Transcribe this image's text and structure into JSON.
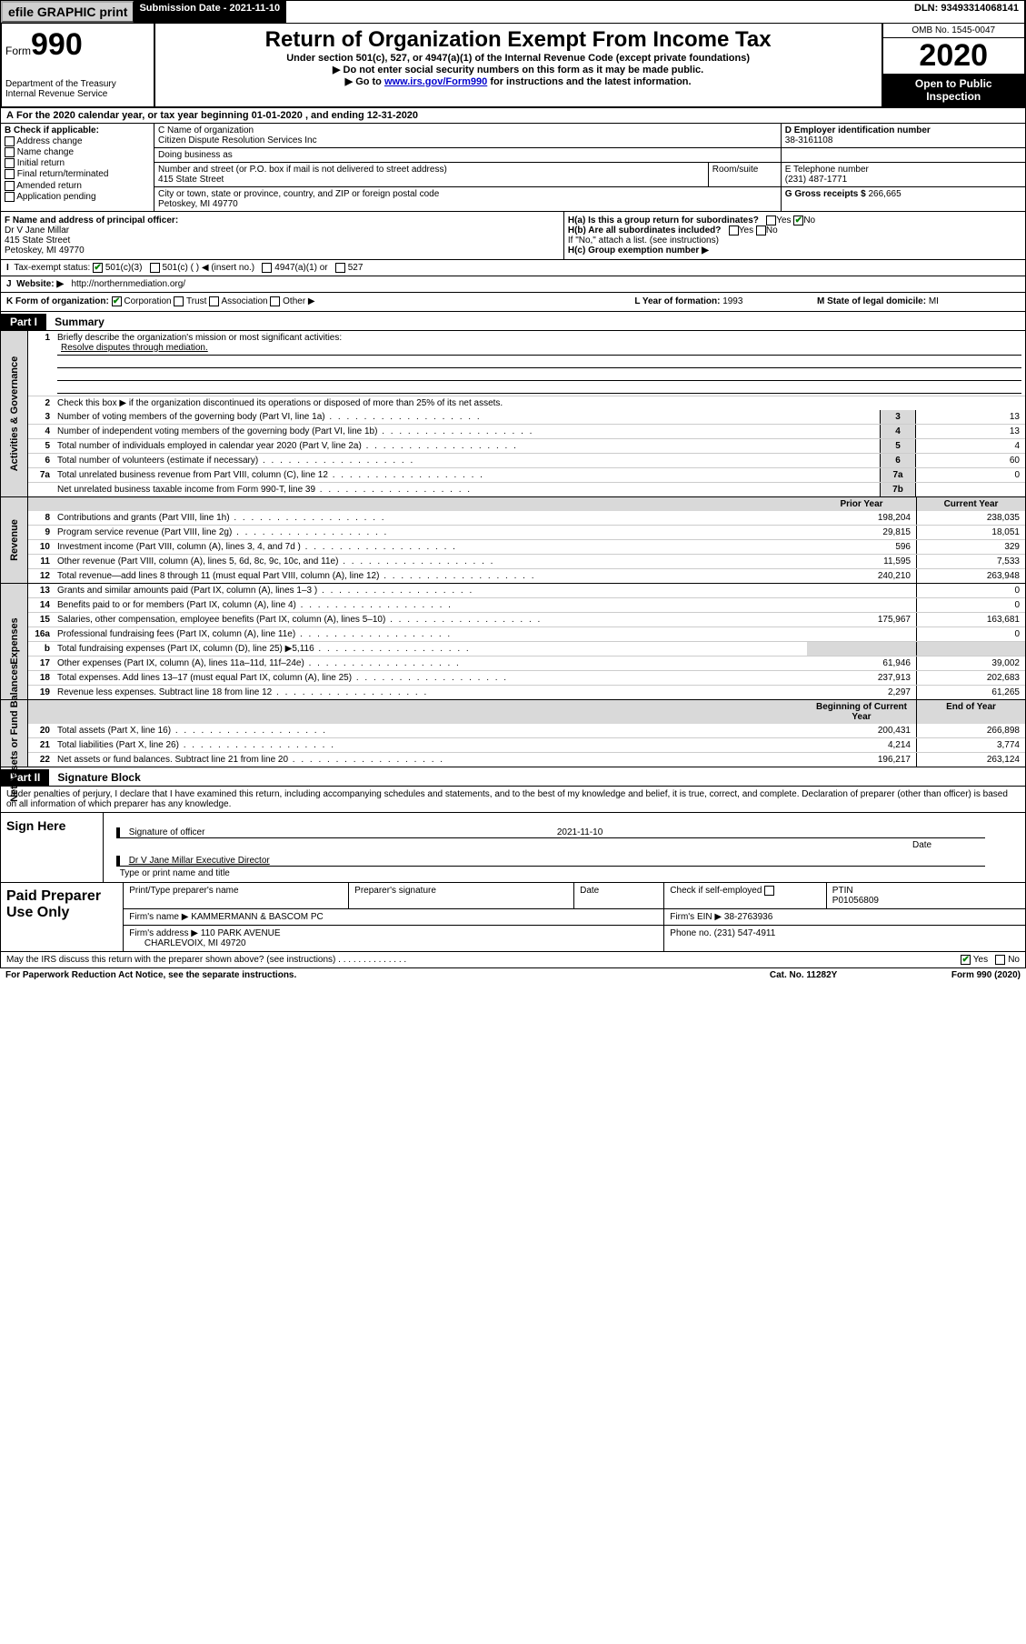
{
  "topbar": {
    "efile": "efile GRAPHIC print",
    "sub_label": "Submission Date - 2021-11-10",
    "dln": "DLN: 93493314068141"
  },
  "header": {
    "form_label": "Form",
    "form_num": "990",
    "dept": "Department of the Treasury\nInternal Revenue Service",
    "title": "Return of Organization Exempt From Income Tax",
    "subtitle": "Under section 501(c), 527, or 4947(a)(1) of the Internal Revenue Code (except private foundations)",
    "line1": "▶ Do not enter social security numbers on this form as it may be made public.",
    "line2_pre": "▶ Go to ",
    "line2_link": "www.irs.gov/Form990",
    "line2_post": " for instructions and the latest information.",
    "omb": "OMB No. 1545-0047",
    "year": "2020",
    "inspection": "Open to Public Inspection"
  },
  "rowA": "For the 2020 calendar year, or tax year beginning 01-01-2020   , and ending 12-31-2020",
  "B": {
    "label": "B Check if applicable:",
    "opts": [
      "Address change",
      "Name change",
      "Initial return",
      "Final return/terminated",
      "Amended return",
      "Application pending"
    ]
  },
  "C": {
    "name_label": "C Name of organization",
    "name": "Citizen Dispute Resolution Services Inc",
    "dba_label": "Doing business as",
    "street_label": "Number and street (or P.O. box if mail is not delivered to street address)",
    "room_label": "Room/suite",
    "street": "415 State Street",
    "city_label": "City or town, state or province, country, and ZIP or foreign postal code",
    "city": "Petoskey, MI  49770"
  },
  "D": {
    "label": "D Employer identification number",
    "value": "38-3161108"
  },
  "E": {
    "label": "E Telephone number",
    "value": "(231) 487-1771"
  },
  "G": {
    "label": "G Gross receipts $",
    "value": "266,665"
  },
  "F": {
    "label": "F  Name and address of principal officer:",
    "name": "Dr V Jane Millar",
    "street": "415 State Street",
    "city": "Petoskey, MI  49770"
  },
  "H": {
    "a": "H(a)  Is this a group return for subordinates?",
    "b": "H(b)  Are all subordinates included?",
    "b_note": "If \"No,\" attach a list. (see instructions)",
    "c": "H(c)  Group exemption number ▶"
  },
  "I": {
    "label": "Tax-exempt status:",
    "opt1": "501(c)(3)",
    "opt2": "501(c) (   ) ◀ (insert no.)",
    "opt3": "4947(a)(1) or",
    "opt4": "527"
  },
  "J": {
    "label": "Website: ▶",
    "value": "http://northernmediation.org/"
  },
  "K": {
    "label": "K Form of organization:",
    "corp": "Corporation",
    "trust": "Trust",
    "assoc": "Association",
    "other": "Other ▶"
  },
  "L": {
    "label": "L Year of formation:",
    "value": "1993"
  },
  "M": {
    "label": "M State of legal domicile:",
    "value": "MI"
  },
  "partI": {
    "header": "Part I",
    "title": "Summary",
    "q1": "Briefly describe the organization's mission or most significant activities:",
    "mission": "Resolve disputes through mediation.",
    "q2": "Check this box ▶        if the organization discontinued its operations or disposed of more than 25% of its net assets.",
    "sideA": "Activities & Governance",
    "sideR": "Revenue",
    "sideE": "Expenses",
    "sideN": "Net Assets or Fund Balances",
    "prior": "Prior Year",
    "current": "Current Year",
    "begin": "Beginning of Current Year",
    "end": "End of Year",
    "lines_gov": [
      {
        "n": "3",
        "t": "Number of voting members of the governing body (Part VI, line 1a)",
        "box": "3",
        "v": "13"
      },
      {
        "n": "4",
        "t": "Number of independent voting members of the governing body (Part VI, line 1b)",
        "box": "4",
        "v": "13"
      },
      {
        "n": "5",
        "t": "Total number of individuals employed in calendar year 2020 (Part V, line 2a)",
        "box": "5",
        "v": "4"
      },
      {
        "n": "6",
        "t": "Total number of volunteers (estimate if necessary)",
        "box": "6",
        "v": "60"
      },
      {
        "n": "7a",
        "t": "Total unrelated business revenue from Part VIII, column (C), line 12",
        "box": "7a",
        "v": "0"
      },
      {
        "n": "",
        "t": "Net unrelated business taxable income from Form 990-T, line 39",
        "box": "7b",
        "v": ""
      }
    ],
    "lines_rev": [
      {
        "n": "8",
        "t": "Contributions and grants (Part VIII, line 1h)",
        "p": "198,204",
        "c": "238,035"
      },
      {
        "n": "9",
        "t": "Program service revenue (Part VIII, line 2g)",
        "p": "29,815",
        "c": "18,051"
      },
      {
        "n": "10",
        "t": "Investment income (Part VIII, column (A), lines 3, 4, and 7d )",
        "p": "596",
        "c": "329"
      },
      {
        "n": "11",
        "t": "Other revenue (Part VIII, column (A), lines 5, 6d, 8c, 9c, 10c, and 11e)",
        "p": "11,595",
        "c": "7,533"
      },
      {
        "n": "12",
        "t": "Total revenue—add lines 8 through 11 (must equal Part VIII, column (A), line 12)",
        "p": "240,210",
        "c": "263,948"
      }
    ],
    "lines_exp": [
      {
        "n": "13",
        "t": "Grants and similar amounts paid (Part IX, column (A), lines 1–3 )",
        "p": "",
        "c": "0"
      },
      {
        "n": "14",
        "t": "Benefits paid to or for members (Part IX, column (A), line 4)",
        "p": "",
        "c": "0"
      },
      {
        "n": "15",
        "t": "Salaries, other compensation, employee benefits (Part IX, column (A), lines 5–10)",
        "p": "175,967",
        "c": "163,681"
      },
      {
        "n": "16a",
        "t": "Professional fundraising fees (Part IX, column (A), line 11e)",
        "p": "",
        "c": "0"
      },
      {
        "n": "b",
        "t": "Total fundraising expenses (Part IX, column (D), line 25) ▶5,116",
        "p": "",
        "c": "",
        "gray": true
      },
      {
        "n": "17",
        "t": "Other expenses (Part IX, column (A), lines 11a–11d, 11f–24e)",
        "p": "61,946",
        "c": "39,002"
      },
      {
        "n": "18",
        "t": "Total expenses. Add lines 13–17 (must equal Part IX, column (A), line 25)",
        "p": "237,913",
        "c": "202,683"
      },
      {
        "n": "19",
        "t": "Revenue less expenses. Subtract line 18 from line 12",
        "p": "2,297",
        "c": "61,265"
      }
    ],
    "lines_net": [
      {
        "n": "20",
        "t": "Total assets (Part X, line 16)",
        "p": "200,431",
        "c": "266,898"
      },
      {
        "n": "21",
        "t": "Total liabilities (Part X, line 26)",
        "p": "4,214",
        "c": "3,774"
      },
      {
        "n": "22",
        "t": "Net assets or fund balances. Subtract line 21 from line 20",
        "p": "196,217",
        "c": "263,124"
      }
    ]
  },
  "partII": {
    "header": "Part II",
    "title": "Signature Block",
    "decl": "Under penalties of perjury, I declare that I have examined this return, including accompanying schedules and statements, and to the best of my knowledge and belief, it is true, correct, and complete. Declaration of preparer (other than officer) is based on all information of which preparer has any knowledge.",
    "sign_here": "Sign Here",
    "sig_officer": "Signature of officer",
    "sig_date": "2021-11-10",
    "date_label": "Date",
    "officer_name": "Dr V Jane Millar  Executive Director",
    "type_label": "Type or print name and title",
    "paid": "Paid Preparer Use Only",
    "prep_name_label": "Print/Type preparer's name",
    "prep_sig_label": "Preparer's signature",
    "prep_date_label": "Date",
    "self_emp": "Check        if self-employed",
    "ptin_label": "PTIN",
    "ptin": "P01056809",
    "firm_name_label": "Firm's name    ▶",
    "firm_name": "KAMMERMANN & BASCOM PC",
    "firm_ein_label": "Firm's EIN ▶",
    "firm_ein": "38-2763936",
    "firm_addr_label": "Firm's address ▶",
    "firm_addr1": "110 PARK AVENUE",
    "firm_addr2": "CHARLEVOIX, MI  49720",
    "firm_phone_label": "Phone no.",
    "firm_phone": "(231) 547-4911",
    "discuss": "May the IRS discuss this return with the preparer shown above? (see instructions)",
    "yes": "Yes",
    "no": "No"
  },
  "footer": {
    "pra": "For Paperwork Reduction Act Notice, see the separate instructions.",
    "cat": "Cat. No. 11282Y",
    "form": "Form 990 (2020)"
  }
}
